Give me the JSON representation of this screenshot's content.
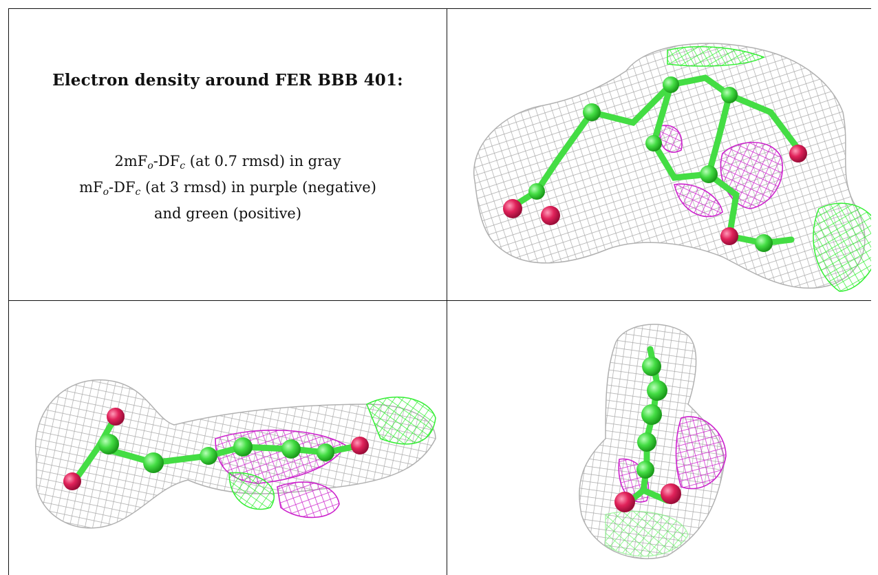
{
  "title": "Electron density around FER BBB 401:",
  "legend": {
    "line1": {
      "prefix": "2mF",
      "sub1": "o",
      "mid": "-DF",
      "sub2": "c",
      "suffix": " (at 0.7 rmsd) in gray"
    },
    "line2": {
      "prefix": "mF",
      "sub1": "o",
      "mid": "-DF",
      "sub2": "c",
      "suffix": " (at 3 rmsd) in purple (negative)"
    },
    "line3": "and green (positive)"
  },
  "colors": {
    "density_2fofc": "#a8a8a8",
    "density_negative": "#cc22cc",
    "density_positive": "#33ee33",
    "carbon_atom": "#44dd44",
    "oxygen_atom": "#e0225a"
  },
  "views": [
    "top-right",
    "bottom-left",
    "bottom-right"
  ]
}
